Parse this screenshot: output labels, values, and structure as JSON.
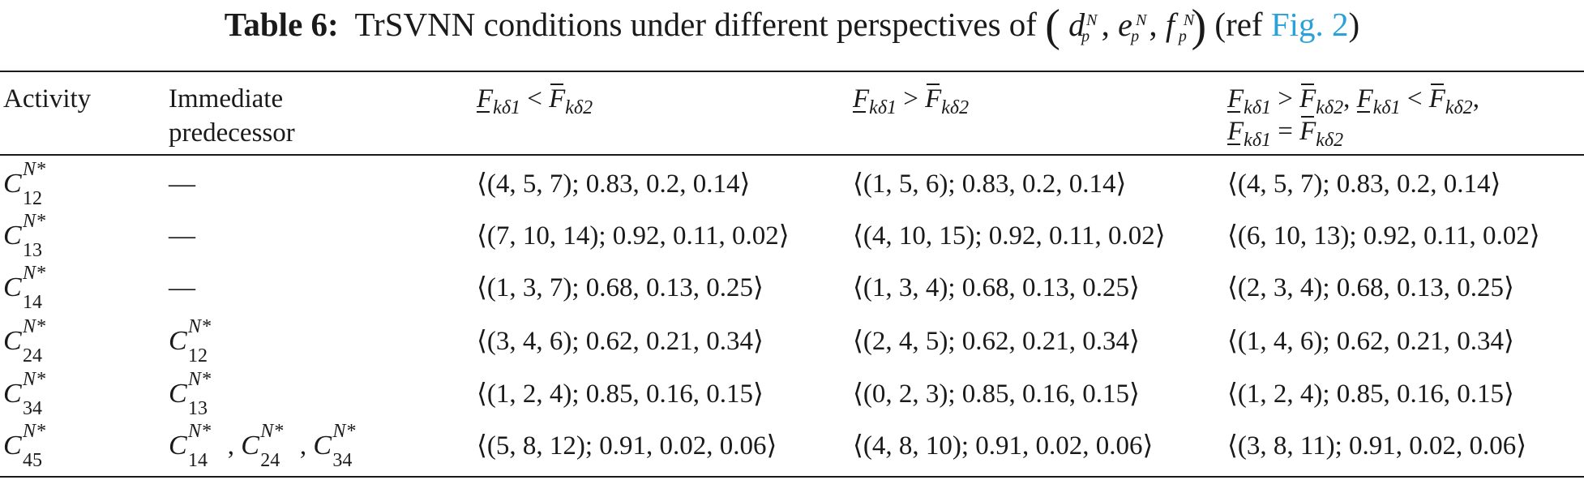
{
  "caption": {
    "label": "Table 6:",
    "text": "TrSVNN conditions under different perspectives of",
    "ref_prefix": "(ref",
    "ref_link": "Fig. 2",
    "ref_suffix": ")",
    "vars": [
      {
        "base": "d",
        "sup": "N",
        "sub": "p"
      },
      {
        "base": "e",
        "sup": "N",
        "sub": "p"
      },
      {
        "base": "f",
        "sup": "N",
        "sub": "p"
      }
    ]
  },
  "headers": {
    "activity": "Activity",
    "predecessor_line1": "Immediate",
    "predecessor_line2": "predecessor",
    "cond1": {
      "lhs": "F",
      "lsub": "kδ1",
      "op": "<",
      "rhs": "F",
      "rsub": "kδ2"
    },
    "cond2": {
      "lhs": "F",
      "lsub": "kδ1",
      "op": ">",
      "rhs": "F",
      "rsub": "kδ2"
    },
    "cond3_line1": [
      {
        "lhs": "F",
        "lsub": "kδ1",
        "op": ">",
        "rhs": "F",
        "rsub": "kδ2",
        "trail": ","
      },
      {
        "lhs": "F",
        "lsub": "kδ1",
        "op": "<",
        "rhs": "F",
        "rsub": "kδ2",
        "trail": ","
      }
    ],
    "cond3_line2": {
      "lhs": "F",
      "lsub": "kδ1",
      "op": "=",
      "rhs": "F",
      "rsub": "kδ2"
    }
  },
  "rows": [
    {
      "activity": {
        "base": "C",
        "sup": "N*",
        "sub": "12"
      },
      "pred": "—",
      "pred_vars": [],
      "c1": "⟨(4, 5, 7); 0.83, 0.2, 0.14⟩",
      "c2": "⟨(1, 5, 6); 0.83, 0.2, 0.14⟩",
      "c3": "⟨(4, 5, 7); 0.83, 0.2, 0.14⟩"
    },
    {
      "activity": {
        "base": "C",
        "sup": "N*",
        "sub": "13"
      },
      "pred": "—",
      "pred_vars": [],
      "c1": "⟨(7, 10, 14); 0.92, 0.11, 0.02⟩",
      "c2": "⟨(4, 10, 15); 0.92, 0.11, 0.02⟩",
      "c3": "⟨(6, 10, 13); 0.92, 0.11, 0.02⟩"
    },
    {
      "activity": {
        "base": "C",
        "sup": "N*",
        "sub": "14"
      },
      "pred": "—",
      "pred_vars": [],
      "c1": "⟨(1, 3, 7); 0.68, 0.13, 0.25⟩",
      "c2": "⟨(1, 3, 4); 0.68, 0.13, 0.25⟩",
      "c3": "⟨(2, 3, 4); 0.68, 0.13, 0.25⟩"
    },
    {
      "activity": {
        "base": "C",
        "sup": "N*",
        "sub": "24"
      },
      "pred": "",
      "pred_vars": [
        {
          "base": "C",
          "sup": "N*",
          "sub": "12"
        }
      ],
      "c1": "⟨(3, 4, 6); 0.62, 0.21, 0.34⟩",
      "c2": "⟨(2, 4, 5); 0.62, 0.21, 0.34⟩",
      "c3": "⟨(1, 4, 6); 0.62, 0.21, 0.34⟩"
    },
    {
      "activity": {
        "base": "C",
        "sup": "N*",
        "sub": "34"
      },
      "pred": "",
      "pred_vars": [
        {
          "base": "C",
          "sup": "N*",
          "sub": "13"
        }
      ],
      "c1": "⟨(1, 2, 4); 0.85, 0.16, 0.15⟩",
      "c2": "⟨(0, 2, 3); 0.85, 0.16, 0.15⟩",
      "c3": "⟨(1, 2, 4); 0.85, 0.16, 0.15⟩"
    },
    {
      "activity": {
        "base": "C",
        "sup": "N*",
        "sub": "45"
      },
      "pred": "",
      "pred_vars": [
        {
          "base": "C",
          "sup": "N*",
          "sub": "14"
        },
        {
          "base": "C",
          "sup": "N*",
          "sub": "24"
        },
        {
          "base": "C",
          "sup": "N*",
          "sub": "34"
        }
      ],
      "c1": "⟨(5, 8, 12); 0.91, 0.02, 0.06⟩",
      "c2": "⟨(4, 8, 10); 0.91, 0.02, 0.06⟩",
      "c3": "⟨(3, 8, 11); 0.91, 0.02, 0.06⟩"
    }
  ]
}
